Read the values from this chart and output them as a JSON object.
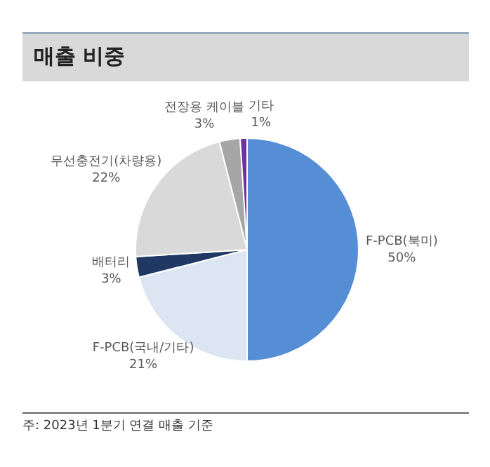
{
  "chart_data": {
    "type": "pie",
    "title": "매출 비중",
    "categories": [
      "F-PCB(북미)",
      "F-PCB(국내/기타)",
      "배터리",
      "무선충전기(차량용)",
      "전장용 케이블",
      "기타"
    ],
    "values": [
      50,
      21,
      3,
      22,
      3,
      1
    ],
    "value_labels": [
      "50%",
      "21%",
      "3%",
      "22%",
      "3%",
      "1%"
    ],
    "colors": [
      "#558ed5",
      "#dce6f2",
      "#1f3864",
      "#d9d9d9",
      "#a6a6a6",
      "#7030a0"
    ],
    "legend": false,
    "annotations": [
      "주: 2023년 1분기 연결 매출 기준"
    ]
  }
}
